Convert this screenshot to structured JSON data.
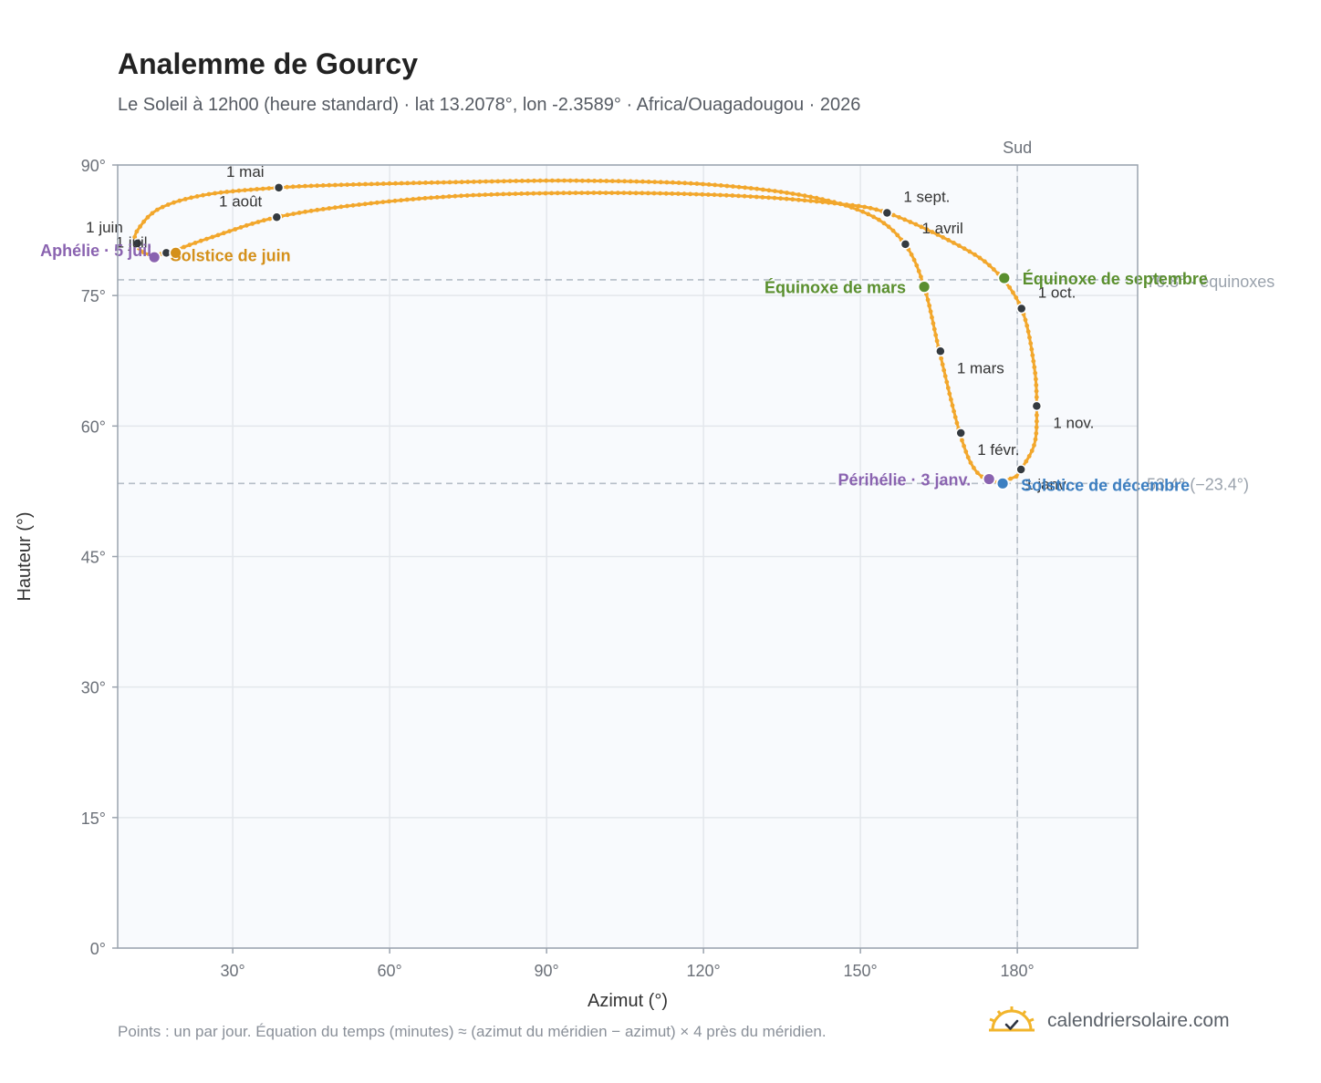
{
  "header": {
    "title": "Analemme de Gourcy",
    "subtitle": "Le Soleil à 12h00 (heure standard) · lat 13.2078°, lon -2.3589° · Africa/Ouagadougou · 2026"
  },
  "footer": {
    "note": "Points : un par jour. Équation du temps (minutes) ≈ (azimut du méridien − azimut) × 4 près du méridien.",
    "brand": "calendriersolaire.com"
  },
  "colors": {
    "curve": "#f2a72c",
    "month_marker": "#343a40",
    "equinox": "#5a8f2e",
    "solstice_june": "#d4901a",
    "solstice_december": "#3d7fc1",
    "apsis": "#8a63b0",
    "grid": "#e3e7ec",
    "plot_bg": "#f8fafd",
    "frame": "#9aa3ae"
  },
  "chart_data": {
    "type": "scatter",
    "title": "Analemme de Gourcy",
    "xlabel": "Azimut (°)",
    "ylabel": "Hauteur (°)",
    "xlim": [
      8,
      203
    ],
    "ylim": [
      0,
      90
    ],
    "grid": true,
    "x_ticks": [
      30,
      60,
      90,
      120,
      150,
      180
    ],
    "x_tick_labels": [
      "30°",
      "60°",
      "90°",
      "120°",
      "150°",
      "180°"
    ],
    "y_ticks": [
      0,
      15,
      30,
      45,
      60,
      75,
      90
    ],
    "y_tick_labels": [
      "0°",
      "15°",
      "30°",
      "45°",
      "60°",
      "75°",
      "90°"
    ],
    "reference_lines": {
      "south": {
        "azimuth": 180,
        "label": "Sud"
      },
      "equinox_altitude": {
        "altitude": 76.8,
        "label": "76.8° · équinoxes"
      },
      "december_solstice_altitude": {
        "altitude": 53.4,
        "label": "53.4° (−23.4°)"
      }
    },
    "daily_path": [
      {
        "x": 179.8,
        "y": 54.2
      },
      {
        "x": 176.0,
        "y": 53.6
      },
      {
        "x": 172.0,
        "y": 54.9
      },
      {
        "x": 169.0,
        "y": 59.2
      },
      {
        "x": 165.1,
        "y": 68.6
      },
      {
        "x": 162.2,
        "y": 76.0
      },
      {
        "x": 158.5,
        "y": 80.9
      },
      {
        "x": 152.0,
        "y": 84.2
      },
      {
        "x": 140.0,
        "y": 86.4
      },
      {
        "x": 120.0,
        "y": 87.8
      },
      {
        "x": 95.0,
        "y": 88.2
      },
      {
        "x": 70.0,
        "y": 88.0
      },
      {
        "x": 50.0,
        "y": 87.7
      },
      {
        "x": 38.8,
        "y": 87.4
      },
      {
        "x": 25.0,
        "y": 86.6
      },
      {
        "x": 16.0,
        "y": 85.0
      },
      {
        "x": 11.8,
        "y": 82.5
      },
      {
        "x": 11.5,
        "y": 81.0
      },
      {
        "x": 13.5,
        "y": 79.8
      },
      {
        "x": 17.3,
        "y": 79.9
      },
      {
        "x": 25.0,
        "y": 81.5
      },
      {
        "x": 38.4,
        "y": 84.0
      },
      {
        "x": 55.0,
        "y": 85.5
      },
      {
        "x": 75.0,
        "y": 86.5
      },
      {
        "x": 100.0,
        "y": 86.8
      },
      {
        "x": 125.0,
        "y": 86.5
      },
      {
        "x": 145.0,
        "y": 85.6
      },
      {
        "x": 155.1,
        "y": 84.5
      },
      {
        "x": 168.0,
        "y": 81.0
      },
      {
        "x": 175.5,
        "y": 78.0
      },
      {
        "x": 180.8,
        "y": 73.5
      },
      {
        "x": 183.2,
        "y": 67.0
      },
      {
        "x": 183.7,
        "y": 62.3
      },
      {
        "x": 183.3,
        "y": 58.0
      },
      {
        "x": 180.7,
        "y": 55.0
      },
      {
        "x": 179.8,
        "y": 54.2
      }
    ],
    "month_markers": [
      {
        "label": "1 janv.",
        "x": 180.7,
        "y": 55.0
      },
      {
        "label": "1 févr.",
        "x": 169.2,
        "y": 59.2
      },
      {
        "label": "1 mars",
        "x": 165.3,
        "y": 68.6
      },
      {
        "label": "1 avril",
        "x": 158.6,
        "y": 80.9
      },
      {
        "label": "1 mai",
        "x": 38.8,
        "y": 87.4
      },
      {
        "label": "1 juin",
        "x": 11.8,
        "y": 81.0
      },
      {
        "label": "1 juil.",
        "x": 17.3,
        "y": 79.9
      },
      {
        "label": "1 août",
        "x": 38.4,
        "y": 84.0
      },
      {
        "label": "1 sept.",
        "x": 155.1,
        "y": 84.5
      },
      {
        "label": "1 oct.",
        "x": 180.8,
        "y": 73.5
      },
      {
        "label": "1 nov.",
        "x": 183.7,
        "y": 62.3
      }
    ],
    "events": [
      {
        "label": "Équinoxe de mars",
        "x": 162.2,
        "y": 76.0,
        "kind": "equinox"
      },
      {
        "label": "Équinoxe de septembre",
        "x": 177.5,
        "y": 77.0,
        "kind": "equinox"
      },
      {
        "label": "Solstice de juin",
        "x": 19.1,
        "y": 79.9,
        "kind": "solstice_june"
      },
      {
        "label": "Solstice de décembre",
        "x": 177.2,
        "y": 53.4,
        "kind": "solstice_december"
      },
      {
        "label": "Aphélie · 5 juil.",
        "x": 15.0,
        "y": 79.4,
        "kind": "apsis"
      },
      {
        "label": "Périhélie · 3 janv.",
        "x": 174.6,
        "y": 53.9,
        "kind": "apsis"
      }
    ]
  }
}
